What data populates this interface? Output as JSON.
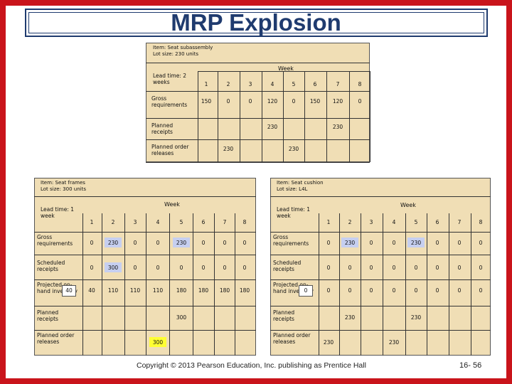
{
  "title": "MRP Explosion",
  "footer": {
    "copyright": "Copyright © 2013 Pearson Education, Inc. publishing as Prentice Hall",
    "page": "16- 56"
  },
  "top": {
    "item": "Item: Seat subassembly",
    "lot": "Lot size: 230 units",
    "lead": "Lead time: 2 weeks",
    "week_label": "Week",
    "weeks": [
      "1",
      "2",
      "3",
      "4",
      "5",
      "6",
      "7",
      "8"
    ],
    "rows": [
      {
        "label": "Gross requirements",
        "values": [
          "150",
          "0",
          "0",
          "120",
          "0",
          "150",
          "120",
          "0"
        ]
      },
      {
        "label": "Planned receipts",
        "values": [
          "",
          "",
          "",
          "230",
          "",
          "",
          "230",
          ""
        ]
      },
      {
        "label": "Planned order releases",
        "values": [
          "",
          "230",
          "",
          "",
          "230",
          "",
          "",
          ""
        ]
      }
    ]
  },
  "left": {
    "item": "Item: Seat frames",
    "lot": "Lot size: 300 units",
    "lead": "Lead time: 1 week",
    "week_label": "Week",
    "weeks": [
      "1",
      "2",
      "3",
      "4",
      "5",
      "6",
      "7",
      "8"
    ],
    "initial": "40",
    "rows": [
      {
        "label": "Gross requirements",
        "values": [
          "0",
          "230",
          "0",
          "0",
          "230",
          "0",
          "0",
          "0"
        ]
      },
      {
        "label": "Scheduled receipts",
        "values": [
          "0",
          "300",
          "0",
          "0",
          "0",
          "0",
          "0",
          "0"
        ]
      },
      {
        "label": "Projected on-hand inventory",
        "values": [
          "40",
          "110",
          "110",
          "110",
          "180",
          "180",
          "180",
          "180"
        ]
      },
      {
        "label": "Planned receipts",
        "values": [
          "",
          "",
          "",
          "",
          "300",
          "",
          "",
          ""
        ]
      },
      {
        "label": "Planned order releases",
        "values": [
          "",
          "",
          "",
          "300",
          "",
          "",
          "",
          ""
        ]
      }
    ]
  },
  "right": {
    "item": "Item: Seat cushion",
    "lot": "Lot size: L4L",
    "lead": "Lead time: 1 week",
    "week_label": "Week",
    "weeks": [
      "1",
      "2",
      "3",
      "4",
      "5",
      "6",
      "7",
      "8"
    ],
    "initial": "0",
    "rows": [
      {
        "label": "Gross requirements",
        "values": [
          "0",
          "230",
          "0",
          "0",
          "230",
          "0",
          "0",
          "0"
        ]
      },
      {
        "label": "Scheduled receipts",
        "values": [
          "0",
          "0",
          "0",
          "0",
          "0",
          "0",
          "0",
          "0"
        ]
      },
      {
        "label": "Projected on-hand inventory",
        "values": [
          "0",
          "0",
          "0",
          "0",
          "0",
          "0",
          "0",
          "0"
        ]
      },
      {
        "label": "Planned receipts",
        "values": [
          "",
          "230",
          "",
          "",
          "230",
          "",
          "",
          ""
        ]
      },
      {
        "label": "Planned order releases",
        "values": [
          "230",
          "",
          "",
          "230",
          "",
          "",
          "",
          ""
        ]
      }
    ]
  }
}
